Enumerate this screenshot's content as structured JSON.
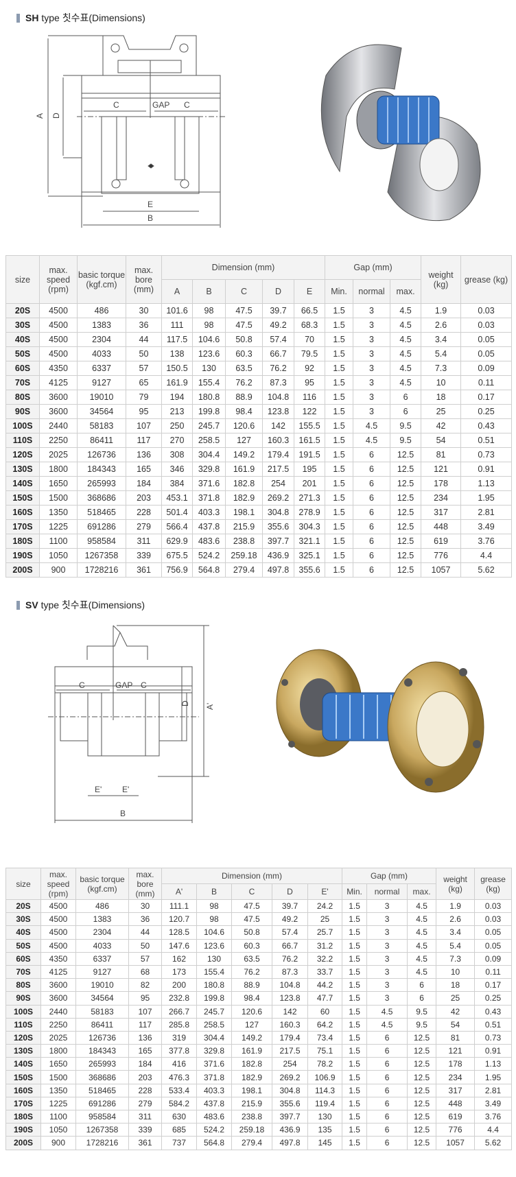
{
  "sections": [
    {
      "title_bold": "SH",
      "title_rest": "type 칫수표(Dimensions)",
      "drawing_labels": {
        "A": "A",
        "D": "D",
        "C1": "C",
        "gap": "GAP",
        "C2": "C",
        "E": "E",
        "B": "B"
      },
      "header": {
        "size": "size",
        "speed": "max. speed (rpm)",
        "torque": "basic torque (kgf.cm)",
        "bore": "max. bore (mm)",
        "dimension": "Dimension (mm)",
        "gap": "Gap (mm)",
        "weight": "weight (kg)",
        "grease": "grease (kg)",
        "dims": [
          "A",
          "B",
          "C",
          "D",
          "E"
        ],
        "gaps": [
          "Min.",
          "normal",
          "max."
        ]
      },
      "rows": [
        [
          "20S",
          "4500",
          "486",
          "30",
          "101.6",
          "98",
          "47.5",
          "39.7",
          "66.5",
          "1.5",
          "3",
          "4.5",
          "1.9",
          "0.03"
        ],
        [
          "30S",
          "4500",
          "1383",
          "36",
          "111",
          "98",
          "47.5",
          "49.2",
          "68.3",
          "1.5",
          "3",
          "4.5",
          "2.6",
          "0.03"
        ],
        [
          "40S",
          "4500",
          "2304",
          "44",
          "117.5",
          "104.6",
          "50.8",
          "57.4",
          "70",
          "1.5",
          "3",
          "4.5",
          "3.4",
          "0.05"
        ],
        [
          "50S",
          "4500",
          "4033",
          "50",
          "138",
          "123.6",
          "60.3",
          "66.7",
          "79.5",
          "1.5",
          "3",
          "4.5",
          "5.4",
          "0.05"
        ],
        [
          "60S",
          "4350",
          "6337",
          "57",
          "150.5",
          "130",
          "63.5",
          "76.2",
          "92",
          "1.5",
          "3",
          "4.5",
          "7.3",
          "0.09"
        ],
        [
          "70S",
          "4125",
          "9127",
          "65",
          "161.9",
          "155.4",
          "76.2",
          "87.3",
          "95",
          "1.5",
          "3",
          "4.5",
          "10",
          "0.11"
        ],
        [
          "80S",
          "3600",
          "19010",
          "79",
          "194",
          "180.8",
          "88.9",
          "104.8",
          "116",
          "1.5",
          "3",
          "6",
          "18",
          "0.17"
        ],
        [
          "90S",
          "3600",
          "34564",
          "95",
          "213",
          "199.8",
          "98.4",
          "123.8",
          "122",
          "1.5",
          "3",
          "6",
          "25",
          "0.25"
        ],
        [
          "100S",
          "2440",
          "58183",
          "107",
          "250",
          "245.7",
          "120.6",
          "142",
          "155.5",
          "1.5",
          "4.5",
          "9.5",
          "42",
          "0.43"
        ],
        [
          "110S",
          "2250",
          "86411",
          "117",
          "270",
          "258.5",
          "127",
          "160.3",
          "161.5",
          "1.5",
          "4.5",
          "9.5",
          "54",
          "0.51"
        ],
        [
          "120S",
          "2025",
          "126736",
          "136",
          "308",
          "304.4",
          "149.2",
          "179.4",
          "191.5",
          "1.5",
          "6",
          "12.5",
          "81",
          "0.73"
        ],
        [
          "130S",
          "1800",
          "184343",
          "165",
          "346",
          "329.8",
          "161.9",
          "217.5",
          "195",
          "1.5",
          "6",
          "12.5",
          "121",
          "0.91"
        ],
        [
          "140S",
          "1650",
          "265993",
          "184",
          "384",
          "371.6",
          "182.8",
          "254",
          "201",
          "1.5",
          "6",
          "12.5",
          "178",
          "1.13"
        ],
        [
          "150S",
          "1500",
          "368686",
          "203",
          "453.1",
          "371.8",
          "182.9",
          "269.2",
          "271.3",
          "1.5",
          "6",
          "12.5",
          "234",
          "1.95"
        ],
        [
          "160S",
          "1350",
          "518465",
          "228",
          "501.4",
          "403.3",
          "198.1",
          "304.8",
          "278.9",
          "1.5",
          "6",
          "12.5",
          "317",
          "2.81"
        ],
        [
          "170S",
          "1225",
          "691286",
          "279",
          "566.4",
          "437.8",
          "215.9",
          "355.6",
          "304.3",
          "1.5",
          "6",
          "12.5",
          "448",
          "3.49"
        ],
        [
          "180S",
          "1100",
          "958584",
          "311",
          "629.9",
          "483.6",
          "238.8",
          "397.7",
          "321.1",
          "1.5",
          "6",
          "12.5",
          "619",
          "3.76"
        ],
        [
          "190S",
          "1050",
          "1267358",
          "339",
          "675.5",
          "524.2",
          "259.18",
          "436.9",
          "325.1",
          "1.5",
          "6",
          "12.5",
          "776",
          "4.4"
        ],
        [
          "200S",
          "900",
          "1728216",
          "361",
          "756.9",
          "564.8",
          "279.4",
          "497.8",
          "355.6",
          "1.5",
          "6",
          "12.5",
          "1057",
          "5.62"
        ]
      ]
    },
    {
      "title_bold": "SV",
      "title_rest": "type 칫수표(Dimensions)",
      "drawing_labels": {
        "A": "A'",
        "D": "D",
        "C1": "C",
        "gap": "GAP",
        "C2": "C",
        "E1": "E'",
        "E2": "E'",
        "B": "B"
      },
      "header": {
        "size": "size",
        "speed": "max. speed (rpm)",
        "torque": "basic torque (kgf.cm)",
        "bore": "max. bore (mm)",
        "dimension": "Dimension (mm)",
        "gap": "Gap (mm)",
        "weight": "weight (kg)",
        "grease": "grease (kg)",
        "dims": [
          "A'",
          "B",
          "C",
          "D",
          "E'"
        ],
        "gaps": [
          "Min.",
          "normal",
          "max."
        ]
      },
      "rows": [
        [
          "20S",
          "4500",
          "486",
          "30",
          "111.1",
          "98",
          "47.5",
          "39.7",
          "24.2",
          "1.5",
          "3",
          "4.5",
          "1.9",
          "0.03"
        ],
        [
          "30S",
          "4500",
          "1383",
          "36",
          "120.7",
          "98",
          "47.5",
          "49.2",
          "25",
          "1.5",
          "3",
          "4.5",
          "2.6",
          "0.03"
        ],
        [
          "40S",
          "4500",
          "2304",
          "44",
          "128.5",
          "104.6",
          "50.8",
          "57.4",
          "25.7",
          "1.5",
          "3",
          "4.5",
          "3.4",
          "0.05"
        ],
        [
          "50S",
          "4500",
          "4033",
          "50",
          "147.6",
          "123.6",
          "60.3",
          "66.7",
          "31.2",
          "1.5",
          "3",
          "4.5",
          "5.4",
          "0.05"
        ],
        [
          "60S",
          "4350",
          "6337",
          "57",
          "162",
          "130",
          "63.5",
          "76.2",
          "32.2",
          "1.5",
          "3",
          "4.5",
          "7.3",
          "0.09"
        ],
        [
          "70S",
          "4125",
          "9127",
          "68",
          "173",
          "155.4",
          "76.2",
          "87.3",
          "33.7",
          "1.5",
          "3",
          "4.5",
          "10",
          "0.11"
        ],
        [
          "80S",
          "3600",
          "19010",
          "82",
          "200",
          "180.8",
          "88.9",
          "104.8",
          "44.2",
          "1.5",
          "3",
          "6",
          "18",
          "0.17"
        ],
        [
          "90S",
          "3600",
          "34564",
          "95",
          "232.8",
          "199.8",
          "98.4",
          "123.8",
          "47.7",
          "1.5",
          "3",
          "6",
          "25",
          "0.25"
        ],
        [
          "100S",
          "2440",
          "58183",
          "107",
          "266.7",
          "245.7",
          "120.6",
          "142",
          "60",
          "1.5",
          "4.5",
          "9.5",
          "42",
          "0.43"
        ],
        [
          "110S",
          "2250",
          "86411",
          "117",
          "285.8",
          "258.5",
          "127",
          "160.3",
          "64.2",
          "1.5",
          "4.5",
          "9.5",
          "54",
          "0.51"
        ],
        [
          "120S",
          "2025",
          "126736",
          "136",
          "319",
          "304.4",
          "149.2",
          "179.4",
          "73.4",
          "1.5",
          "6",
          "12.5",
          "81",
          "0.73"
        ],
        [
          "130S",
          "1800",
          "184343",
          "165",
          "377.8",
          "329.8",
          "161.9",
          "217.5",
          "75.1",
          "1.5",
          "6",
          "12.5",
          "121",
          "0.91"
        ],
        [
          "140S",
          "1650",
          "265993",
          "184",
          "416",
          "371.6",
          "182.8",
          "254",
          "78.2",
          "1.5",
          "6",
          "12.5",
          "178",
          "1.13"
        ],
        [
          "150S",
          "1500",
          "368686",
          "203",
          "476.3",
          "371.8",
          "182.9",
          "269.2",
          "106.9",
          "1.5",
          "6",
          "12.5",
          "234",
          "1.95"
        ],
        [
          "160S",
          "1350",
          "518465",
          "228",
          "533.4",
          "403.3",
          "198.1",
          "304.8",
          "114.3",
          "1.5",
          "6",
          "12.5",
          "317",
          "2.81"
        ],
        [
          "170S",
          "1225",
          "691286",
          "279",
          "584.2",
          "437.8",
          "215.9",
          "355.6",
          "119.4",
          "1.5",
          "6",
          "12.5",
          "448",
          "3.49"
        ],
        [
          "180S",
          "1100",
          "958584",
          "311",
          "630",
          "483.6",
          "238.8",
          "397.7",
          "130",
          "1.5",
          "6",
          "12.5",
          "619",
          "3.76"
        ],
        [
          "190S",
          "1050",
          "1267358",
          "339",
          "685",
          "524.2",
          "259.18",
          "436.9",
          "135",
          "1.5",
          "6",
          "12.5",
          "776",
          "4.4"
        ],
        [
          "200S",
          "900",
          "1728216",
          "361",
          "737",
          "564.8",
          "279.4",
          "497.8",
          "145",
          "1.5",
          "6",
          "12.5",
          "1057",
          "5.62"
        ]
      ]
    }
  ],
  "colors": {
    "title_bar": "#8c9bb0",
    "header_bg": "#f3f3f3",
    "border": "#cfcfcf",
    "spring_blue": "#3b78c8",
    "sv_flange": "#c9a860",
    "sh_cover": "#a8aab0"
  }
}
